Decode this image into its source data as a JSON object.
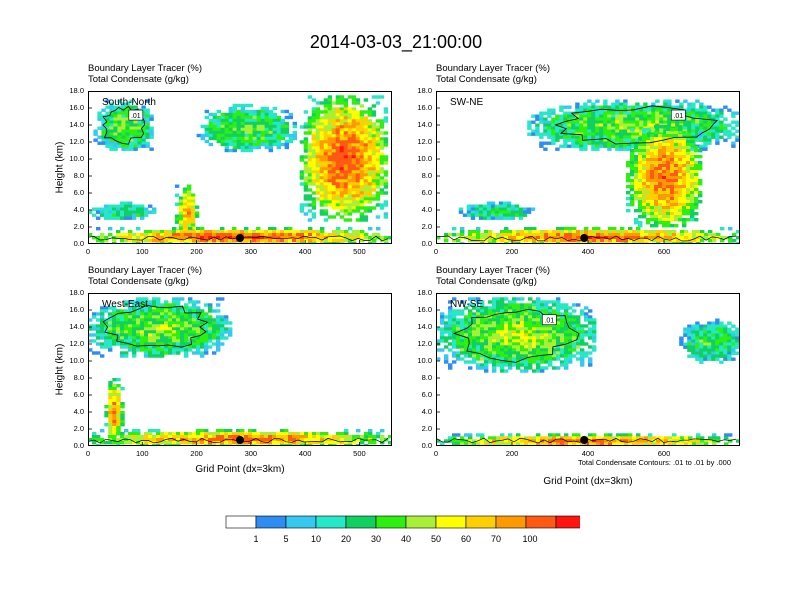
{
  "title": "2014-03-03_21:00:00",
  "footnote": "Total Condensate Contours: .01 to .01 by .000",
  "x_axis_label": "Grid Point (dx=3km)",
  "palette": [
    "#ffffff",
    "#2f8cf0",
    "#36c8f0",
    "#26e8c8",
    "#10d060",
    "#2ef010",
    "#a8f038",
    "#ffff00",
    "#ffd000",
    "#ff9900",
    "#ff5a14",
    "#ff1410"
  ],
  "colorbar": {
    "labels": [
      "1",
      "5",
      "10",
      "20",
      "30",
      "40",
      "50",
      "60",
      "70",
      "100"
    ],
    "colors": [
      "#ffffff",
      "#2f8cf0",
      "#36c8f0",
      "#26e8c8",
      "#10d060",
      "#2ef010",
      "#a8f038",
      "#ffff00",
      "#ffd000",
      "#ff9900",
      "#ff5a14",
      "#ff1410"
    ]
  },
  "chart_data": [
    {
      "type": "contour",
      "panel": "South-North",
      "label1": "Boundary Layer Tracer   (%)",
      "label2": "Total Condensate   (g/kg)",
      "ylabel": "Height (km)",
      "xlabel": "",
      "xlim": [
        0,
        560
      ],
      "ylim": [
        0,
        18
      ],
      "xticks": [
        "0",
        "100",
        "200",
        "300",
        "400",
        "500"
      ],
      "yticks": [
        "0.0",
        "2.0",
        "4.0",
        "6.0",
        "8.0",
        "10.0",
        "12.0",
        "14.0",
        "16.0",
        "18.0"
      ],
      "marker_x": 280,
      "contour_label": ".01",
      "features": [
        {
          "x": [
            10,
            120
          ],
          "y": [
            11,
            17
          ],
          "v": 35
        },
        {
          "x": [
            200,
            380
          ],
          "y": [
            11,
            16.5
          ],
          "v": 35
        },
        {
          "x": [
            390,
            550
          ],
          "y": [
            3,
            17.5
          ],
          "v": 85
        },
        {
          "x": [
            160,
            200
          ],
          "y": [
            0.5,
            7
          ],
          "v": 70
        },
        {
          "x": [
            0,
            560
          ],
          "y": [
            0,
            2
          ],
          "v": 90
        },
        {
          "x": [
            0,
            120
          ],
          "y": [
            3,
            5
          ],
          "v": 25
        }
      ]
    },
    {
      "type": "contour",
      "panel": "SW-NE",
      "label1": "Boundary Layer Tracer   (%)",
      "label2": "Total Condensate   (g/kg)",
      "ylabel": "",
      "xlabel": "",
      "xlim": [
        0,
        800
      ],
      "ylim": [
        0,
        18
      ],
      "xticks": [
        "0",
        "200",
        "400",
        "600"
      ],
      "yticks": [
        "0.0",
        "2.0",
        "4.0",
        "6.0",
        "8.0",
        "10.0",
        "12.0",
        "14.0",
        "16.0",
        "18.0"
      ],
      "marker_x": 390,
      "contour_label": ".01",
      "features": [
        {
          "x": [
            240,
            800
          ],
          "y": [
            11,
            17
          ],
          "v": 40
        },
        {
          "x": [
            500,
            700
          ],
          "y": [
            2,
            14
          ],
          "v": 80
        },
        {
          "x": [
            0,
            800
          ],
          "y": [
            0,
            2
          ],
          "v": 85
        },
        {
          "x": [
            60,
            260
          ],
          "y": [
            3,
            5
          ],
          "v": 25
        }
      ]
    },
    {
      "type": "contour",
      "panel": "West-East",
      "label1": "Boundary Layer Tracer   (%)",
      "label2": "Total Condensate   (g/kg)",
      "ylabel": "Height (km)",
      "xlabel": "Grid Point (dx=3km)",
      "xlim": [
        0,
        560
      ],
      "ylim": [
        0,
        18
      ],
      "xticks": [
        "0",
        "100",
        "200",
        "300",
        "400",
        "500"
      ],
      "yticks": [
        "0.0",
        "2.0",
        "4.0",
        "6.0",
        "8.0",
        "10.0",
        "12.0",
        "14.0",
        "16.0",
        "18.0"
      ],
      "marker_x": 280,
      "contour_label": "",
      "features": [
        {
          "x": [
            0,
            260
          ],
          "y": [
            10.5,
            17.5
          ],
          "v": 40
        },
        {
          "x": [
            30,
            60
          ],
          "y": [
            0.5,
            8
          ],
          "v": 75
        },
        {
          "x": [
            0,
            560
          ],
          "y": [
            0,
            2
          ],
          "v": 80
        }
      ]
    },
    {
      "type": "contour",
      "panel": "NW-SE",
      "label1": "Boundary Layer Tracer   (%)",
      "label2": "Total Condensate   (g/kg)",
      "ylabel": "",
      "xlabel": "Grid Point (dx=3km)",
      "xlim": [
        0,
        800
      ],
      "ylim": [
        0,
        18
      ],
      "xticks": [
        "0",
        "200",
        "400",
        "600"
      ],
      "yticks": [
        "0.0",
        "2.0",
        "4.0",
        "6.0",
        "8.0",
        "10.0",
        "12.0",
        "14.0",
        "16.0",
        "18.0"
      ],
      "marker_x": 390,
      "contour_label": ".01",
      "features": [
        {
          "x": [
            0,
            420
          ],
          "y": [
            9,
            17.5
          ],
          "v": 45
        },
        {
          "x": [
            640,
            800
          ],
          "y": [
            10,
            15
          ],
          "v": 30
        },
        {
          "x": [
            0,
            800
          ],
          "y": [
            0,
            1.5
          ],
          "v": 80
        }
      ]
    }
  ]
}
